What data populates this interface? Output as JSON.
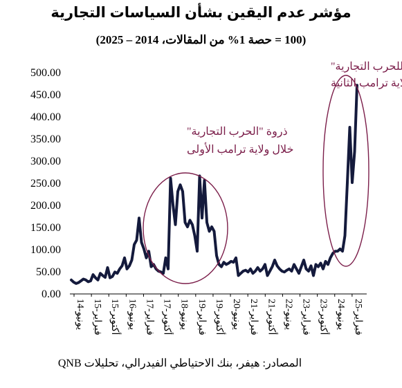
{
  "header": {
    "title": "مؤشر عدم اليقين بشأن السياسات التجارية",
    "subtitle": "(100 = حصة 1% من المقالات، 2014 – 2025)"
  },
  "footer": {
    "source": "المصادر: هيفر، بنك الاحتياطي الفيدرالي، تحليلات QNB"
  },
  "colors": {
    "line": "#141a3c",
    "annotation": "#7b1e4a"
  },
  "chart_data": {
    "type": "line",
    "title": "مؤشر عدم اليقين بشأن السياسات التجارية",
    "subtitle": "(100 = حصة 1% من المقالات، 2014 – 2025)",
    "xlabel": "",
    "ylabel": "",
    "ylim": [
      0,
      500
    ],
    "y_ticks": [
      "0.00",
      "50.00",
      "100.00",
      "150.00",
      "200.00",
      "250.00",
      "300.00",
      "350.00",
      "400.00",
      "450.00",
      "500.00"
    ],
    "x_tick_labels": [
      "14-يونيو",
      "15-فبراير",
      "15-أكتوبر",
      "16-يونيو",
      "17-فبراير",
      "17-أكتوبر",
      "18-يونيو",
      "19-فبراير",
      "19-أكتوبر",
      "20-يونيو",
      "21-فبراير",
      "21-أكتوبر",
      "22-يونيو",
      "23-فبراير",
      "23-أكتوبر",
      "24-يونيو",
      "25-فبراير"
    ],
    "grid": false,
    "legend": "none",
    "series": [
      {
        "values": [
          [
            0,
            30
          ],
          [
            1,
            25
          ],
          [
            2,
            22
          ],
          [
            3,
            24
          ],
          [
            4,
            28
          ],
          [
            5,
            32
          ],
          [
            6,
            30
          ],
          [
            7,
            26
          ],
          [
            8,
            28
          ],
          [
            9,
            42
          ],
          [
            10,
            35
          ],
          [
            11,
            30
          ],
          [
            12,
            45
          ],
          [
            13,
            40
          ],
          [
            14,
            36
          ],
          [
            15,
            58
          ],
          [
            16,
            35
          ],
          [
            17,
            38
          ],
          [
            18,
            48
          ],
          [
            19,
            45
          ],
          [
            20,
            55
          ],
          [
            21,
            62
          ],
          [
            22,
            80
          ],
          [
            23,
            55
          ],
          [
            24,
            62
          ],
          [
            25,
            75
          ],
          [
            26,
            110
          ],
          [
            27,
            120
          ],
          [
            28,
            170
          ],
          [
            29,
            115
          ],
          [
            30,
            100
          ],
          [
            31,
            80
          ],
          [
            32,
            95
          ],
          [
            33,
            60
          ],
          [
            34,
            65
          ],
          [
            35,
            55
          ],
          [
            36,
            50
          ],
          [
            37,
            48
          ],
          [
            38,
            45
          ],
          [
            39,
            80
          ],
          [
            40,
            55
          ],
          [
            41,
            260
          ],
          [
            42,
            200
          ],
          [
            43,
            155
          ],
          [
            44,
            230
          ],
          [
            45,
            245
          ],
          [
            46,
            230
          ],
          [
            47,
            160
          ],
          [
            48,
            150
          ],
          [
            49,
            165
          ],
          [
            50,
            155
          ],
          [
            51,
            130
          ],
          [
            52,
            95
          ],
          [
            53,
            265
          ],
          [
            54,
            170
          ],
          [
            55,
            255
          ],
          [
            56,
            160
          ],
          [
            57,
            140
          ],
          [
            58,
            150
          ],
          [
            59,
            140
          ],
          [
            60,
            85
          ],
          [
            61,
            65
          ],
          [
            62,
            60
          ],
          [
            63,
            70
          ],
          [
            64,
            65
          ],
          [
            65,
            68
          ],
          [
            66,
            72
          ],
          [
            67,
            70
          ],
          [
            68,
            80
          ],
          [
            69,
            40
          ],
          [
            70,
            45
          ],
          [
            71,
            50
          ],
          [
            72,
            52
          ],
          [
            73,
            48
          ],
          [
            74,
            55
          ],
          [
            75,
            45
          ],
          [
            76,
            50
          ],
          [
            77,
            58
          ],
          [
            78,
            50
          ],
          [
            79,
            55
          ],
          [
            80,
            65
          ],
          [
            81,
            40
          ],
          [
            82,
            50
          ],
          [
            83,
            60
          ],
          [
            84,
            75
          ],
          [
            85,
            62
          ],
          [
            86,
            55
          ],
          [
            87,
            50
          ],
          [
            88,
            48
          ],
          [
            89,
            52
          ],
          [
            90,
            55
          ],
          [
            91,
            50
          ],
          [
            92,
            65
          ],
          [
            93,
            55
          ],
          [
            94,
            45
          ],
          [
            95,
            60
          ],
          [
            96,
            75
          ],
          [
            97,
            55
          ],
          [
            98,
            50
          ],
          [
            99,
            62
          ],
          [
            100,
            40
          ],
          [
            101,
            65
          ],
          [
            102,
            60
          ],
          [
            103,
            68
          ],
          [
            104,
            55
          ],
          [
            105,
            72
          ],
          [
            106,
            65
          ],
          [
            107,
            80
          ],
          [
            108,
            90
          ],
          [
            109,
            95
          ],
          [
            110,
            95
          ],
          [
            111,
            100
          ],
          [
            112,
            95
          ],
          [
            113,
            130
          ],
          [
            114,
            250
          ],
          [
            115,
            375
          ],
          [
            116,
            250
          ],
          [
            117,
            320
          ],
          [
            118,
            470
          ]
        ]
      }
    ],
    "annotations": [
      {
        "lines": [
          "ذروة \"الحرب التجارية\"",
          "خلال ولاية ترامب الأولى"
        ]
      },
      {
        "lines": [
          "البدايات الأولية \"للحرب التجارية\"",
          "خلال ولاية ترامب الثانية"
        ]
      }
    ]
  }
}
